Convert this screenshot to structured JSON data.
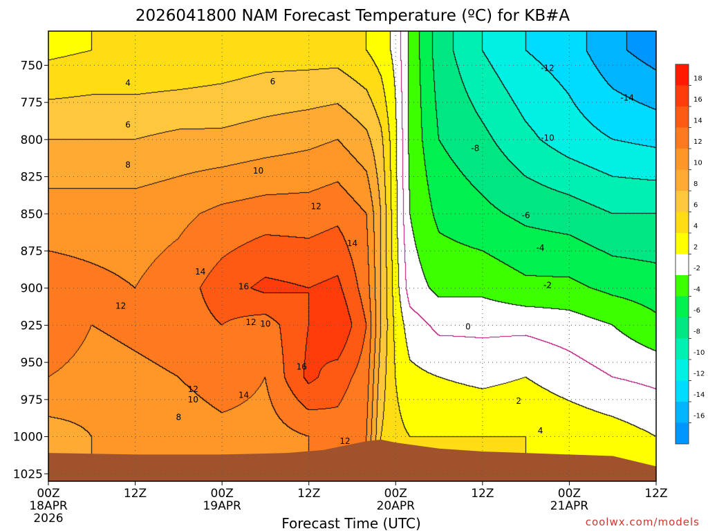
{
  "chart_data": {
    "type": "heatmap",
    "title": "2026041800 NAM Forecast Temperature (ºC) for KB#A",
    "xlabel": "Forecast Time (UTC)",
    "ylabel": "",
    "x_unit": "forecast hour",
    "xlim": [
      0,
      84
    ],
    "ylim_hPa": [
      1030,
      727
    ],
    "y_ticks": [
      750,
      775,
      800,
      825,
      850,
      875,
      900,
      925,
      950,
      975,
      1000,
      1025
    ],
    "x_ticks": [
      {
        "hour": 0,
        "lines": [
          "00Z",
          "18APR",
          "2026"
        ]
      },
      {
        "hour": 12,
        "lines": [
          "12Z"
        ]
      },
      {
        "hour": 24,
        "lines": [
          "00Z",
          "19APR"
        ]
      },
      {
        "hour": 36,
        "lines": [
          "12Z"
        ]
      },
      {
        "hour": 48,
        "lines": [
          "00Z",
          "20APR"
        ]
      },
      {
        "hour": 60,
        "lines": [
          "12Z"
        ]
      },
      {
        "hour": 72,
        "lines": [
          "00Z",
          "21APR"
        ]
      },
      {
        "hour": 84,
        "lines": [
          "12Z"
        ]
      }
    ],
    "grid": true,
    "colorbar": {
      "placement": "right",
      "tick_labels": [
        "18",
        "16",
        "14",
        "12",
        "10",
        "8",
        "6",
        "4",
        "2",
        "-2",
        "-4",
        "-6",
        "-8",
        "-10",
        "-12",
        "-14",
        "-16"
      ],
      "bins": [
        {
          "min": 18,
          "max": 20,
          "color": "#ff1a00"
        },
        {
          "min": 16,
          "max": 18,
          "color": "#ff3c0a"
        },
        {
          "min": 14,
          "max": 16,
          "color": "#ff5a14"
        },
        {
          "min": 12,
          "max": 14,
          "color": "#ff7a1e"
        },
        {
          "min": 10,
          "max": 12,
          "color": "#ff9628"
        },
        {
          "min": 8,
          "max": 10,
          "color": "#ffaa32"
        },
        {
          "min": 6,
          "max": 8,
          "color": "#ffc83c"
        },
        {
          "min": 4,
          "max": 6,
          "color": "#ffdc14"
        },
        {
          "min": 2,
          "max": 4,
          "color": "#ffff00"
        },
        {
          "min": -2,
          "max": 2,
          "color": "#ffffff"
        },
        {
          "min": -4,
          "max": -2,
          "color": "#3cff00"
        },
        {
          "min": -6,
          "max": -4,
          "color": "#00f050"
        },
        {
          "min": -8,
          "max": -6,
          "color": "#00e682"
        },
        {
          "min": -10,
          "max": -8,
          "color": "#00f0b4"
        },
        {
          "min": -12,
          "max": -10,
          "color": "#00f0e6"
        },
        {
          "min": -14,
          "max": -12,
          "color": "#00dcff"
        },
        {
          "min": -16,
          "max": -14,
          "color": "#00b4ff"
        },
        {
          "min": -18,
          "max": -16,
          "color": "#0096ff"
        }
      ]
    },
    "contour_interval": 2,
    "zero_contour_color": "#b4006e",
    "ground_color": "#a0522d",
    "surface_pressure_hPa": [
      [
        0,
        1011
      ],
      [
        12,
        1012
      ],
      [
        24,
        1012
      ],
      [
        33,
        1011
      ],
      [
        38,
        1009
      ],
      [
        41,
        1006
      ],
      [
        44,
        1003
      ],
      [
        46,
        1002
      ],
      [
        48,
        1004
      ],
      [
        54,
        1008
      ],
      [
        60,
        1010
      ],
      [
        66,
        1011
      ],
      [
        72,
        1012
      ],
      [
        78,
        1013
      ],
      [
        84,
        1020
      ]
    ],
    "temperature_profiles": [
      {
        "hour": 0,
        "p": [
          740,
          800,
          850,
          900,
          925,
          960,
          1000
        ],
        "t": [
          3.5,
          8,
          11,
          13,
          14,
          12,
          9
        ]
      },
      {
        "hour": 6,
        "p": [
          740,
          800,
          850,
          900,
          925,
          960,
          1000
        ],
        "t": [
          4,
          8,
          11,
          12.5,
          12,
          11,
          10
        ]
      },
      {
        "hour": 12,
        "p": [
          740,
          800,
          850,
          900,
          925,
          960,
          1000
        ],
        "t": [
          4,
          8,
          11,
          12,
          12.5,
          11.5,
          10
        ]
      },
      {
        "hour": 18,
        "p": [
          740,
          800,
          850,
          900,
          925,
          960,
          1000
        ],
        "t": [
          4,
          8.5,
          11.5,
          13,
          13,
          12,
          10
        ]
      },
      {
        "hour": 24,
        "p": [
          740,
          800,
          850,
          900,
          925,
          960,
          1000
        ],
        "t": [
          4.5,
          8.5,
          12.5,
          15,
          14,
          13.5,
          11
        ]
      },
      {
        "hour": 30,
        "p": [
          740,
          800,
          850,
          900,
          925,
          960,
          1000
        ],
        "t": [
          5,
          9,
          13,
          16.5,
          13,
          12,
          11
        ]
      },
      {
        "hour": 36,
        "p": [
          740,
          800,
          850,
          900,
          925,
          960,
          1000
        ],
        "t": [
          5,
          9.5,
          13,
          16,
          16,
          16.5,
          12
        ]
      },
      {
        "hour": 40,
        "p": [
          740,
          800,
          850,
          900,
          925,
          960,
          1000
        ],
        "t": [
          5,
          10,
          13.5,
          16.5,
          18,
          15,
          13
        ]
      },
      {
        "hour": 44,
        "p": [
          740,
          800,
          850,
          900,
          925,
          960,
          1000
        ],
        "t": [
          4,
          8.5,
          12,
          13,
          14,
          13,
          12
        ]
      },
      {
        "hour": 46,
        "p": [
          740,
          800,
          850,
          900,
          925,
          960,
          1000
        ],
        "t": [
          3,
          6.5,
          8,
          8,
          8,
          7,
          6
        ]
      },
      {
        "hour": 48,
        "p": [
          740,
          800,
          850,
          900,
          925,
          960,
          1000
        ],
        "t": [
          1.5,
          2.5,
          2.5,
          3,
          3.5,
          4,
          4.5
        ]
      },
      {
        "hour": 50,
        "p": [
          740,
          800,
          850,
          900,
          925,
          960,
          1000
        ],
        "t": [
          -2.5,
          -2.5,
          -2,
          -1,
          1,
          2.5,
          4
        ]
      },
      {
        "hour": 54,
        "p": [
          740,
          800,
          850,
          900,
          925,
          960,
          1000
        ],
        "t": [
          -7,
          -6,
          -4.5,
          -2.5,
          -0.5,
          2,
          4
        ]
      },
      {
        "hour": 60,
        "p": [
          740,
          800,
          850,
          900,
          925,
          960,
          1000
        ],
        "t": [
          -10,
          -7.5,
          -5.5,
          -2.5,
          -0.5,
          1.5,
          4
        ]
      },
      {
        "hour": 66,
        "p": [
          740,
          800,
          850,
          900,
          925,
          960,
          1000
        ],
        "t": [
          -12,
          -9.5,
          -6.5,
          -3.5,
          -0.5,
          2,
          4
        ]
      },
      {
        "hour": 72,
        "p": [
          740,
          800,
          850,
          900,
          925,
          960,
          1000
        ],
        "t": [
          -13,
          -11,
          -7,
          -3.5,
          -1,
          1,
          3.5
        ]
      },
      {
        "hour": 78,
        "p": [
          740,
          800,
          850,
          900,
          925,
          960,
          1000
        ],
        "t": [
          -15.5,
          -12,
          -8,
          -4.5,
          -2,
          0,
          3
        ]
      },
      {
        "hour": 84,
        "p": [
          740,
          800,
          850,
          900,
          925,
          960,
          1000
        ],
        "t": [
          -17,
          -12.5,
          -8,
          -5,
          -3.5,
          -0.5,
          2
        ]
      }
    ],
    "contour_labels": [
      {
        "text": "4",
        "hour": 11,
        "p": 762
      },
      {
        "text": "6",
        "hour": 31,
        "p": 761
      },
      {
        "text": "6",
        "hour": 11,
        "p": 790
      },
      {
        "text": "8",
        "hour": 11,
        "p": 817
      },
      {
        "text": "10",
        "hour": 29,
        "p": 821
      },
      {
        "text": "12",
        "hour": 37,
        "p": 845
      },
      {
        "text": "14",
        "hour": 42,
        "p": 870
      },
      {
        "text": "14",
        "hour": 21,
        "p": 889
      },
      {
        "text": "16",
        "hour": 27,
        "p": 899
      },
      {
        "text": "12",
        "hour": 10,
        "p": 912
      },
      {
        "text": "12",
        "hour": 28,
        "p": 923
      },
      {
        "text": "10",
        "hour": 30,
        "p": 924
      },
      {
        "text": "16",
        "hour": 35,
        "p": 953
      },
      {
        "text": "12",
        "hour": 20,
        "p": 968
      },
      {
        "text": "14",
        "hour": 27,
        "p": 972
      },
      {
        "text": "10",
        "hour": 20,
        "p": 975
      },
      {
        "text": "8",
        "hour": 18,
        "p": 987
      },
      {
        "text": "12",
        "hour": 41,
        "p": 1003
      },
      {
        "text": "-12",
        "hour": 69,
        "p": 752
      },
      {
        "text": "-14",
        "hour": 80,
        "p": 772
      },
      {
        "text": "-10",
        "hour": 69,
        "p": 799
      },
      {
        "text": "-8",
        "hour": 59,
        "p": 806
      },
      {
        "text": "-6",
        "hour": 66,
        "p": 851
      },
      {
        "text": "-4",
        "hour": 68,
        "p": 873
      },
      {
        "text": "-2",
        "hour": 69,
        "p": 898
      },
      {
        "text": "0",
        "hour": 58,
        "p": 926
      },
      {
        "text": "2",
        "hour": 65,
        "p": 976
      },
      {
        "text": "4",
        "hour": 68,
        "p": 996
      }
    ]
  },
  "footer": {
    "credit": "coolwx.com/models"
  }
}
